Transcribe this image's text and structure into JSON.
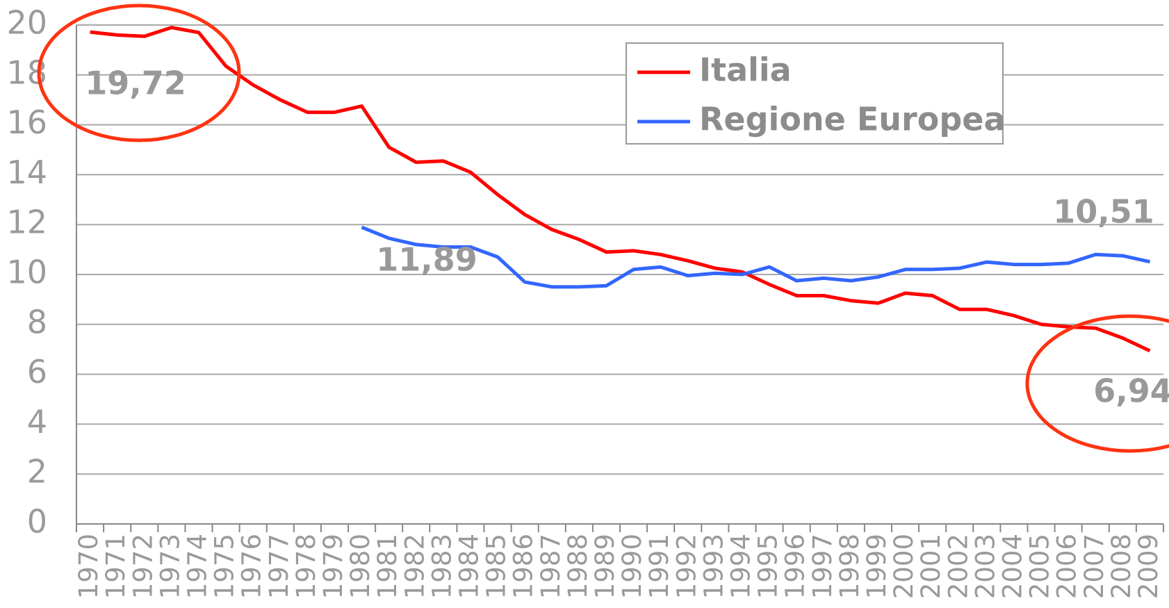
{
  "chart_data": {
    "type": "line",
    "categories": [
      "1970",
      "1971",
      "1972",
      "1973",
      "1974",
      "1975",
      "1976",
      "1977",
      "1978",
      "1979",
      "1980",
      "1981",
      "1982",
      "1983",
      "1984",
      "1985",
      "1986",
      "1987",
      "1988",
      "1989",
      "1990",
      "1991",
      "1992",
      "1993",
      "1994",
      "1995",
      "1996",
      "1997",
      "1998",
      "1999",
      "2000",
      "2001",
      "2002",
      "2003",
      "2004",
      "2005",
      "2006",
      "2007",
      "2008",
      "2009"
    ],
    "series": [
      {
        "name": "Italia",
        "color": "#ff0000",
        "values": [
          19.72,
          19.6,
          19.55,
          19.9,
          19.7,
          18.35,
          17.6,
          17.0,
          16.5,
          16.5,
          16.75,
          15.1,
          14.5,
          14.55,
          14.1,
          13.2,
          12.4,
          11.8,
          11.4,
          10.9,
          10.95,
          10.8,
          10.55,
          10.25,
          10.1,
          9.6,
          9.15,
          9.15,
          8.95,
          8.85,
          9.25,
          9.15,
          8.6,
          8.6,
          8.35,
          8.0,
          7.9,
          7.85,
          7.45,
          6.94
        ],
        "value_labels": [
          "19,72",
          null,
          null,
          null,
          null,
          null,
          null,
          null,
          null,
          null,
          null,
          null,
          null,
          null,
          null,
          null,
          null,
          null,
          null,
          null,
          null,
          null,
          null,
          null,
          null,
          null,
          null,
          null,
          null,
          null,
          null,
          null,
          null,
          null,
          null,
          null,
          null,
          null,
          null,
          "6,94"
        ]
      },
      {
        "name": "Regione Europea",
        "color": "#3366ff",
        "values": [
          null,
          null,
          null,
          null,
          null,
          null,
          null,
          null,
          null,
          null,
          11.89,
          11.45,
          11.2,
          11.1,
          11.1,
          10.7,
          9.7,
          9.5,
          9.5,
          9.55,
          10.2,
          10.3,
          9.95,
          10.05,
          10.0,
          10.3,
          9.75,
          9.85,
          9.75,
          9.9,
          10.2,
          10.2,
          10.25,
          10.5,
          10.4,
          10.4,
          10.45,
          10.8,
          10.75,
          10.51
        ],
        "value_labels": [
          null,
          null,
          null,
          null,
          null,
          null,
          null,
          null,
          null,
          null,
          "11,89",
          null,
          null,
          null,
          null,
          null,
          null,
          null,
          null,
          null,
          null,
          null,
          null,
          null,
          null,
          null,
          null,
          null,
          null,
          null,
          null,
          null,
          null,
          null,
          null,
          null,
          null,
          null,
          null,
          "10,51"
        ]
      }
    ],
    "ylim": [
      0,
      20
    ],
    "yticks": [
      0,
      2,
      4,
      6,
      8,
      10,
      12,
      14,
      16,
      18,
      20
    ],
    "grid": true,
    "legend": "top"
  }
}
